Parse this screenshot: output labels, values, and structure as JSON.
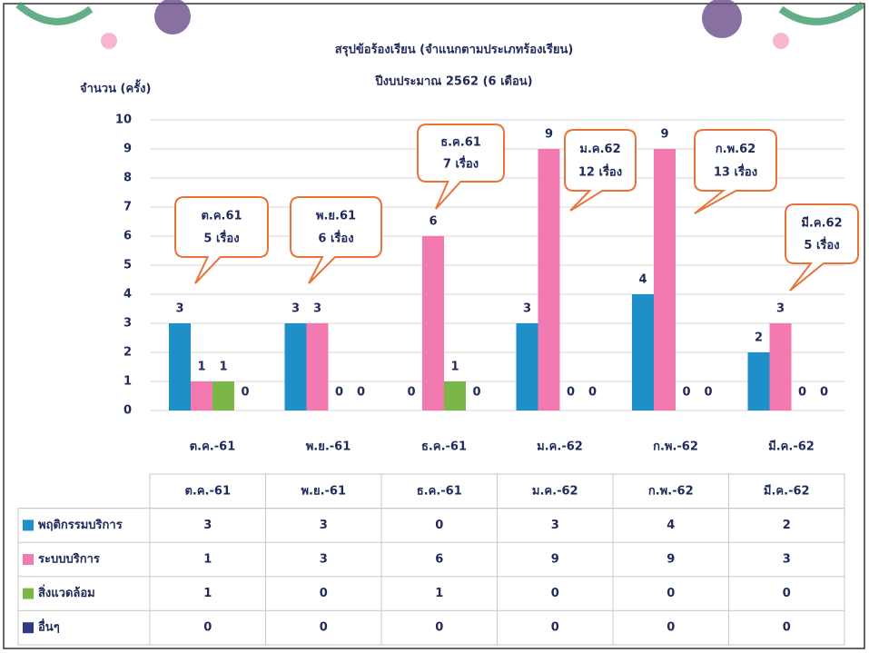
{
  "chart_data": {
    "type": "bar",
    "title": "สรุปข้อร้องเรียน (จำแนกตามประเภทร้องเรียน)",
    "subtitle": "ปีงบประมาณ 2562 (6 เดือน)",
    "y_label": "จำนวน (ครั้ง)",
    "categories": [
      "ต.ค.-61",
      "พ.ย.-61",
      "ธ.ค.-61",
      "ม.ค.-62",
      "ก.พ.-62",
      "มี.ค.-62"
    ],
    "series": [
      {
        "name": "พฤติกรรมบริการ",
        "color": "#1f8fc9",
        "values": [
          3,
          3,
          0,
          3,
          4,
          2
        ]
      },
      {
        "name": "ระบบบริการ",
        "color": "#f27ab0",
        "values": [
          1,
          3,
          6,
          9,
          9,
          3
        ]
      },
      {
        "name": "สิ่งแวดล้อม",
        "color": "#7ab648",
        "values": [
          1,
          0,
          1,
          0,
          0,
          0
        ]
      },
      {
        "name": "อื่นๆ",
        "color": "#2e3a87",
        "values": [
          0,
          0,
          0,
          0,
          0,
          0
        ]
      }
    ],
    "ylim": [
      0,
      10
    ],
    "yticks": [
      0,
      1,
      2,
      3,
      4,
      5,
      6,
      7,
      8,
      9,
      10
    ],
    "grid": true,
    "annotations": [
      {
        "title": "ต.ค.61",
        "text": "5 เรื่อง"
      },
      {
        "title": "พ.ย.61",
        "text": "6 เรื่อง"
      },
      {
        "title": "ธ.ค.61",
        "text": "7 เรื่อง"
      },
      {
        "title": "ม.ค.62",
        "text": "12 เรื่อง"
      },
      {
        "title": "ก.พ.62",
        "text": "13 เรื่อง"
      },
      {
        "title": "มี.ค.62",
        "text": "5 เรื่อง"
      }
    ]
  }
}
